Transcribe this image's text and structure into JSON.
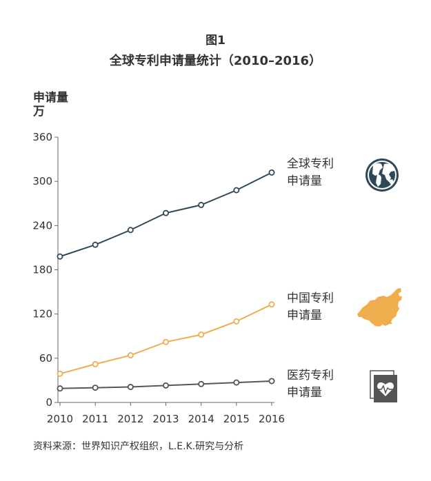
{
  "header": {
    "figure_label": "图1",
    "title": "全球专利申请量统计（2010–2016）"
  },
  "footer": {
    "source": "资料来源：世界知识产权组织，L.E.K.研究与分析"
  },
  "chart_data": {
    "type": "line",
    "title": "全球专利申请量统计（2010–2016）",
    "ylabel": "申请量万",
    "ylabel_lines": [
      "申请量",
      "万"
    ],
    "xlabel": "",
    "x": [
      "2010",
      "2011",
      "2012",
      "2013",
      "2014",
      "2015",
      "2016"
    ],
    "ylim": [
      0,
      360
    ],
    "yticks": [
      0,
      60,
      120,
      180,
      240,
      300,
      360
    ],
    "grid": false,
    "legend": "inline-right",
    "series": [
      {
        "name": "全球专利申请量",
        "label_lines": [
          "全球专利",
          "申请量"
        ],
        "color": "#2f4858",
        "icon": "globe-icon",
        "values": [
          198,
          214,
          234,
          257,
          268,
          288,
          312
        ]
      },
      {
        "name": "中国专利申请量",
        "label_lines": [
          "中国专利",
          "申请量"
        ],
        "color": "#f0ad4e",
        "icon": "china-map-icon",
        "values": [
          39,
          52,
          64,
          82,
          92,
          110,
          133
        ]
      },
      {
        "name": "医药专利申请量",
        "label_lines": [
          "医药专利",
          "申请量"
        ],
        "color": "#555555",
        "icon": "medical-document-icon",
        "values": [
          19,
          20,
          21,
          23,
          25,
          27,
          29
        ]
      }
    ]
  }
}
